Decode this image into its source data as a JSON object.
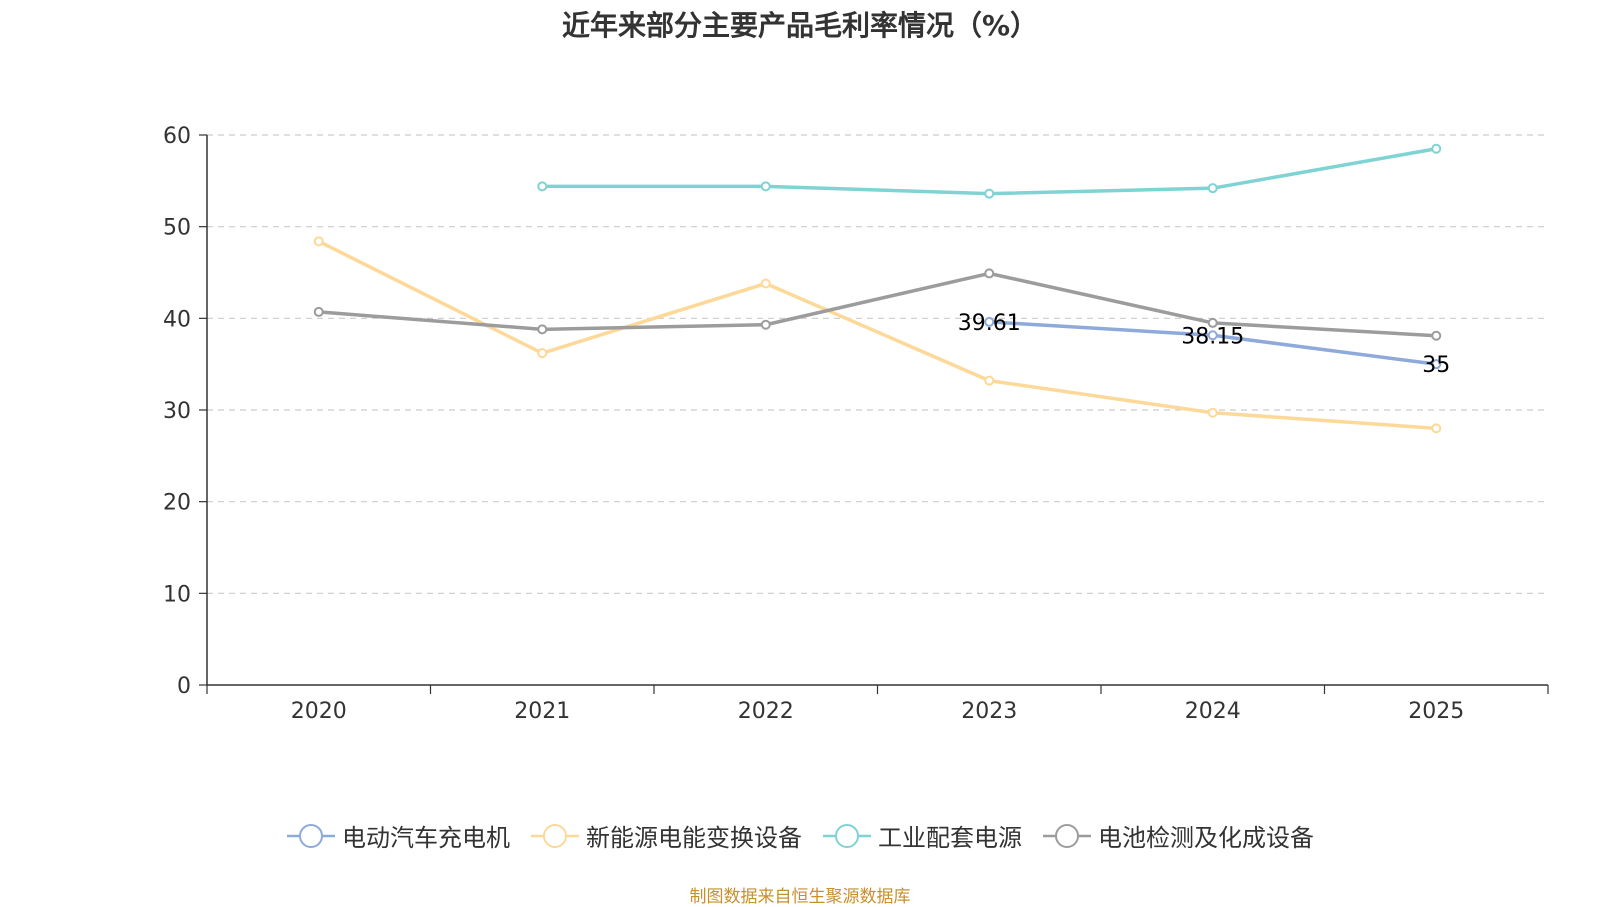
{
  "chart_data": {
    "type": "line",
    "title": "近年来部分主要产品毛利率情况（%）",
    "categories": [
      "2020",
      "2021",
      "2022",
      "2023",
      "2024",
      "2025"
    ],
    "ylim": [
      0,
      60
    ],
    "yticks": [
      0,
      10,
      20,
      30,
      40,
      50,
      60
    ],
    "grid": true,
    "legend_position": "bottom",
    "series": [
      {
        "name": "电动汽车充电机",
        "color": "#8eaadb",
        "values": [
          null,
          null,
          null,
          39.61,
          38.15,
          35
        ],
        "labels": [
          null,
          null,
          null,
          "39.61",
          "38.15",
          "35"
        ]
      },
      {
        "name": "新能源电能变换设备",
        "color": "#fcd998",
        "values": [
          48.4,
          36.2,
          43.8,
          33.2,
          29.7,
          28
        ]
      },
      {
        "name": "工业配套电源",
        "color": "#7fd3d3",
        "values": [
          null,
          54.4,
          54.4,
          53.6,
          54.2,
          58.5
        ]
      },
      {
        "name": "电池检测及化成设备",
        "color": "#9c9c9c",
        "values": [
          40.7,
          38.8,
          39.3,
          44.9,
          39.5,
          38.1
        ]
      }
    ]
  },
  "footer": {
    "source": "制图数据来自恒生聚源数据库"
  }
}
